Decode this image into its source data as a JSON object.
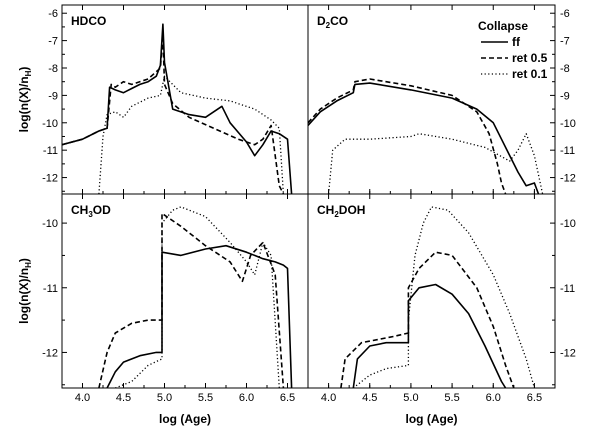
{
  "chart_data": {
    "type": "line",
    "legend": {
      "title": "Collapse",
      "placement": "top-right of D2CO panel",
      "entries": [
        {
          "label": "ff",
          "style": "solid"
        },
        {
          "label": "ret 0.5",
          "style": "dashed"
        },
        {
          "label": "ret 0.1",
          "style": "dotted"
        }
      ]
    },
    "xlabel": "log (Age)",
    "xlim": [
      3.75,
      6.75
    ],
    "xticks": [
      "4.0",
      "4.5",
      "5.0",
      "5.5",
      "6.0",
      "6.5"
    ],
    "grid": false,
    "panels": [
      {
        "id": "hdco",
        "title": "HDCO",
        "ylabel": "log(n(X)/n",
        "ylabel_sub": "H",
        "ylabel_end": ")",
        "ylim": [
          -12.6,
          -5.7
        ],
        "yticks": [
          "-6",
          "-7",
          "-8",
          "-9",
          "-10",
          "-11",
          "-12"
        ],
        "series": [
          {
            "label": "ff",
            "points": [
              [
                3.75,
                -10.8
              ],
              [
                4.0,
                -10.6
              ],
              [
                4.2,
                -10.3
              ],
              [
                4.3,
                -10.2
              ],
              [
                4.33,
                -8.7
              ],
              [
                4.4,
                -8.8
              ],
              [
                4.5,
                -8.9
              ],
              [
                4.6,
                -8.75
              ],
              [
                4.7,
                -8.6
              ],
              [
                4.8,
                -8.5
              ],
              [
                4.9,
                -8.3
              ],
              [
                4.95,
                -7.9
              ],
              [
                4.98,
                -6.4
              ],
              [
                5.0,
                -7.8
              ],
              [
                5.1,
                -9.5
              ],
              [
                5.3,
                -9.7
              ],
              [
                5.5,
                -9.8
              ],
              [
                5.7,
                -9.4
              ],
              [
                5.8,
                -10.0
              ],
              [
                6.0,
                -10.7
              ],
              [
                6.1,
                -11.2
              ],
              [
                6.2,
                -10.8
              ],
              [
                6.3,
                -10.3
              ],
              [
                6.4,
                -10.4
              ],
              [
                6.5,
                -10.6
              ],
              [
                6.55,
                -12.6
              ]
            ]
          },
          {
            "label": "ret 0.5",
            "points": [
              [
                3.75,
                -10.8
              ],
              [
                4.0,
                -10.6
              ],
              [
                4.2,
                -10.3
              ],
              [
                4.3,
                -10.2
              ],
              [
                4.35,
                -8.6
              ],
              [
                4.4,
                -8.7
              ],
              [
                4.5,
                -8.5
              ],
              [
                4.6,
                -8.6
              ],
              [
                4.8,
                -8.4
              ],
              [
                4.95,
                -8.0
              ],
              [
                4.98,
                -6.8
              ],
              [
                5.0,
                -8.6
              ],
              [
                5.1,
                -9.3
              ],
              [
                5.3,
                -9.8
              ],
              [
                5.6,
                -10.2
              ],
              [
                5.9,
                -10.6
              ],
              [
                6.1,
                -10.8
              ],
              [
                6.2,
                -10.6
              ],
              [
                6.3,
                -10.1
              ],
              [
                6.4,
                -12.3
              ],
              [
                6.45,
                -12.6
              ]
            ]
          },
          {
            "label": "ret 0.1",
            "points": [
              [
                4.2,
                -12.6
              ],
              [
                4.25,
                -10.5
              ],
              [
                4.3,
                -9.7
              ],
              [
                4.4,
                -9.6
              ],
              [
                4.5,
                -9.8
              ],
              [
                4.6,
                -9.4
              ],
              [
                4.8,
                -9.1
              ],
              [
                4.95,
                -9.0
              ],
              [
                5.0,
                -8.3
              ],
              [
                5.2,
                -8.9
              ],
              [
                5.5,
                -9.1
              ],
              [
                5.8,
                -9.2
              ],
              [
                6.1,
                -9.5
              ],
              [
                6.3,
                -9.9
              ],
              [
                6.4,
                -10.2
              ],
              [
                6.45,
                -12.6
              ]
            ]
          }
        ]
      },
      {
        "id": "d2co",
        "title": "D",
        "title_sub": "2",
        "title_end": "CO",
        "ylim": [
          -12.6,
          -5.7
        ],
        "yticks": [
          "-6",
          "-7",
          "-8",
          "-9",
          "-10",
          "-11",
          "-12"
        ],
        "series": [
          {
            "label": "ff",
            "points": [
              [
                3.75,
                -10.1
              ],
              [
                3.9,
                -9.6
              ],
              [
                4.1,
                -9.2
              ],
              [
                4.3,
                -8.9
              ],
              [
                4.32,
                -8.6
              ],
              [
                4.5,
                -8.55
              ],
              [
                5.0,
                -8.8
              ],
              [
                5.5,
                -9.1
              ],
              [
                5.8,
                -9.5
              ],
              [
                6.0,
                -10.0
              ],
              [
                6.1,
                -10.6
              ],
              [
                6.3,
                -11.8
              ],
              [
                6.4,
                -12.3
              ],
              [
                6.5,
                -12.2
              ],
              [
                6.55,
                -12.6
              ]
            ]
          },
          {
            "label": "ret 0.5",
            "points": [
              [
                3.75,
                -10.0
              ],
              [
                3.9,
                -9.5
              ],
              [
                4.1,
                -9.1
              ],
              [
                4.3,
                -8.8
              ],
              [
                4.32,
                -8.5
              ],
              [
                4.5,
                -8.4
              ],
              [
                5.0,
                -8.65
              ],
              [
                5.5,
                -9.0
              ],
              [
                5.8,
                -9.6
              ],
              [
                5.95,
                -10.4
              ],
              [
                6.05,
                -11.5
              ],
              [
                6.1,
                -12.2
              ],
              [
                6.15,
                -12.6
              ]
            ]
          },
          {
            "label": "ret 0.1",
            "points": [
              [
                4.0,
                -12.6
              ],
              [
                4.05,
                -11.0
              ],
              [
                4.2,
                -10.6
              ],
              [
                4.5,
                -10.6
              ],
              [
                5.0,
                -10.5
              ],
              [
                5.1,
                -10.4
              ],
              [
                5.5,
                -10.6
              ],
              [
                5.9,
                -10.9
              ],
              [
                6.2,
                -11.4
              ],
              [
                6.3,
                -11.0
              ],
              [
                6.4,
                -10.4
              ],
              [
                6.5,
                -11.2
              ],
              [
                6.6,
                -12.6
              ]
            ]
          }
        ]
      },
      {
        "id": "ch3od",
        "title": "CH",
        "title_sub": "3",
        "title_end": "OD",
        "ylabel": "log(n(X)/n",
        "ylabel_sub": "H",
        "ylabel_end": ")",
        "ylim": [
          -12.55,
          -9.55
        ],
        "yticks": [
          "-10",
          "-11",
          "-12"
        ],
        "series": [
          {
            "label": "ff",
            "points": [
              [
                4.3,
                -12.55
              ],
              [
                4.4,
                -12.3
              ],
              [
                4.5,
                -12.15
              ],
              [
                4.7,
                -12.05
              ],
              [
                4.9,
                -12.0
              ],
              [
                4.97,
                -12.0
              ],
              [
                4.97,
                -10.45
              ],
              [
                5.2,
                -10.5
              ],
              [
                5.5,
                -10.4
              ],
              [
                5.75,
                -10.35
              ],
              [
                6.0,
                -10.45
              ],
              [
                6.2,
                -10.55
              ],
              [
                6.35,
                -10.6
              ],
              [
                6.45,
                -10.65
              ],
              [
                6.5,
                -10.7
              ],
              [
                6.55,
                -12.55
              ]
            ]
          },
          {
            "label": "ret 0.5",
            "points": [
              [
                4.2,
                -12.55
              ],
              [
                4.3,
                -12.0
              ],
              [
                4.4,
                -11.7
              ],
              [
                4.6,
                -11.55
              ],
              [
                4.8,
                -11.5
              ],
              [
                4.97,
                -11.5
              ],
              [
                4.97,
                -9.85
              ],
              [
                5.2,
                -10.05
              ],
              [
                5.5,
                -10.35
              ],
              [
                5.8,
                -10.6
              ],
              [
                5.95,
                -10.9
              ],
              [
                6.05,
                -10.5
              ],
              [
                6.2,
                -10.3
              ],
              [
                6.35,
                -10.8
              ],
              [
                6.45,
                -12.55
              ]
            ]
          },
          {
            "label": "ret 0.1",
            "points": [
              [
                4.4,
                -12.55
              ],
              [
                4.6,
                -12.45
              ],
              [
                4.8,
                -12.2
              ],
              [
                4.97,
                -12.1
              ],
              [
                4.97,
                -10.0
              ],
              [
                5.1,
                -9.8
              ],
              [
                5.2,
                -9.75
              ],
              [
                5.5,
                -9.9
              ],
              [
                5.8,
                -10.3
              ],
              [
                6.0,
                -10.6
              ],
              [
                6.1,
                -10.8
              ],
              [
                6.2,
                -10.3
              ],
              [
                6.3,
                -10.5
              ],
              [
                6.4,
                -12.55
              ]
            ]
          }
        ]
      },
      {
        "id": "ch2doh",
        "title": "CH",
        "title_sub": "2",
        "title_end": "DOH",
        "ylim": [
          -12.55,
          -9.55
        ],
        "yticks": [
          "-10",
          "-11",
          "-12"
        ],
        "series": [
          {
            "label": "ff",
            "points": [
              [
                4.3,
                -12.55
              ],
              [
                4.35,
                -12.1
              ],
              [
                4.5,
                -11.9
              ],
              [
                4.7,
                -11.85
              ],
              [
                4.97,
                -11.85
              ],
              [
                4.97,
                -11.2
              ],
              [
                5.1,
                -11.0
              ],
              [
                5.3,
                -10.95
              ],
              [
                5.5,
                -11.1
              ],
              [
                5.7,
                -11.4
              ],
              [
                5.9,
                -11.9
              ],
              [
                6.1,
                -12.45
              ],
              [
                6.15,
                -12.55
              ]
            ]
          },
          {
            "label": "ret 0.5",
            "points": [
              [
                4.15,
                -12.55
              ],
              [
                4.2,
                -12.1
              ],
              [
                4.4,
                -11.85
              ],
              [
                4.6,
                -11.8
              ],
              [
                4.8,
                -11.75
              ],
              [
                4.97,
                -11.7
              ],
              [
                4.97,
                -11.0
              ],
              [
                5.1,
                -10.7
              ],
              [
                5.3,
                -10.45
              ],
              [
                5.5,
                -10.5
              ],
              [
                5.8,
                -11.0
              ],
              [
                6.0,
                -11.6
              ],
              [
                6.15,
                -12.2
              ],
              [
                6.25,
                -12.55
              ]
            ]
          },
          {
            "label": "ret 0.1",
            "points": [
              [
                4.3,
                -12.55
              ],
              [
                4.5,
                -12.35
              ],
              [
                4.7,
                -12.25
              ],
              [
                4.97,
                -12.2
              ],
              [
                4.97,
                -11.5
              ],
              [
                5.05,
                -10.5
              ],
              [
                5.15,
                -10.0
              ],
              [
                5.25,
                -9.75
              ],
              [
                5.45,
                -9.8
              ],
              [
                5.7,
                -10.15
              ],
              [
                6.0,
                -10.8
              ],
              [
                6.2,
                -11.4
              ],
              [
                6.4,
                -12.1
              ],
              [
                6.5,
                -12.55
              ]
            ]
          }
        ]
      }
    ]
  }
}
